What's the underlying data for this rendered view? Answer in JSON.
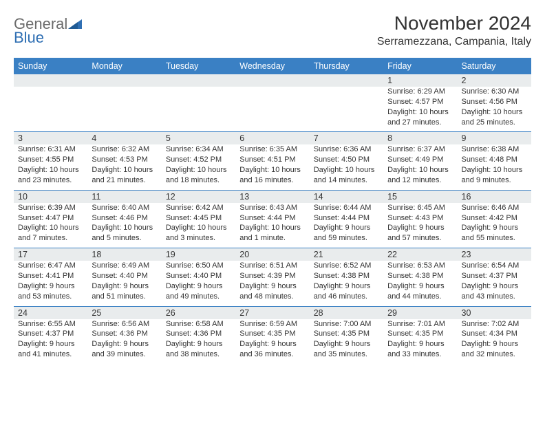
{
  "logo": {
    "part1": "General",
    "part2": "Blue"
  },
  "title": "November 2024",
  "location": "Serramezzana, Campania, Italy",
  "colors": {
    "header_bg": "#3a80c4",
    "header_text": "#ffffff",
    "daynum_bg": "#e9eced",
    "text": "#333333",
    "rule": "#3a80c4",
    "logo_gray": "#6b6b6b",
    "logo_blue": "#2f6fb3"
  },
  "day_names": [
    "Sunday",
    "Monday",
    "Tuesday",
    "Wednesday",
    "Thursday",
    "Friday",
    "Saturday"
  ],
  "weeks": [
    [
      null,
      null,
      null,
      null,
      null,
      {
        "n": "1",
        "sr": "6:29 AM",
        "ss": "4:57 PM",
        "dl": "10 hours and 27 minutes."
      },
      {
        "n": "2",
        "sr": "6:30 AM",
        "ss": "4:56 PM",
        "dl": "10 hours and 25 minutes."
      }
    ],
    [
      {
        "n": "3",
        "sr": "6:31 AM",
        "ss": "4:55 PM",
        "dl": "10 hours and 23 minutes."
      },
      {
        "n": "4",
        "sr": "6:32 AM",
        "ss": "4:53 PM",
        "dl": "10 hours and 21 minutes."
      },
      {
        "n": "5",
        "sr": "6:34 AM",
        "ss": "4:52 PM",
        "dl": "10 hours and 18 minutes."
      },
      {
        "n": "6",
        "sr": "6:35 AM",
        "ss": "4:51 PM",
        "dl": "10 hours and 16 minutes."
      },
      {
        "n": "7",
        "sr": "6:36 AM",
        "ss": "4:50 PM",
        "dl": "10 hours and 14 minutes."
      },
      {
        "n": "8",
        "sr": "6:37 AM",
        "ss": "4:49 PM",
        "dl": "10 hours and 12 minutes."
      },
      {
        "n": "9",
        "sr": "6:38 AM",
        "ss": "4:48 PM",
        "dl": "10 hours and 9 minutes."
      }
    ],
    [
      {
        "n": "10",
        "sr": "6:39 AM",
        "ss": "4:47 PM",
        "dl": "10 hours and 7 minutes."
      },
      {
        "n": "11",
        "sr": "6:40 AM",
        "ss": "4:46 PM",
        "dl": "10 hours and 5 minutes."
      },
      {
        "n": "12",
        "sr": "6:42 AM",
        "ss": "4:45 PM",
        "dl": "10 hours and 3 minutes."
      },
      {
        "n": "13",
        "sr": "6:43 AM",
        "ss": "4:44 PM",
        "dl": "10 hours and 1 minute."
      },
      {
        "n": "14",
        "sr": "6:44 AM",
        "ss": "4:44 PM",
        "dl": "9 hours and 59 minutes."
      },
      {
        "n": "15",
        "sr": "6:45 AM",
        "ss": "4:43 PM",
        "dl": "9 hours and 57 minutes."
      },
      {
        "n": "16",
        "sr": "6:46 AM",
        "ss": "4:42 PM",
        "dl": "9 hours and 55 minutes."
      }
    ],
    [
      {
        "n": "17",
        "sr": "6:47 AM",
        "ss": "4:41 PM",
        "dl": "9 hours and 53 minutes."
      },
      {
        "n": "18",
        "sr": "6:49 AM",
        "ss": "4:40 PM",
        "dl": "9 hours and 51 minutes."
      },
      {
        "n": "19",
        "sr": "6:50 AM",
        "ss": "4:40 PM",
        "dl": "9 hours and 49 minutes."
      },
      {
        "n": "20",
        "sr": "6:51 AM",
        "ss": "4:39 PM",
        "dl": "9 hours and 48 minutes."
      },
      {
        "n": "21",
        "sr": "6:52 AM",
        "ss": "4:38 PM",
        "dl": "9 hours and 46 minutes."
      },
      {
        "n": "22",
        "sr": "6:53 AM",
        "ss": "4:38 PM",
        "dl": "9 hours and 44 minutes."
      },
      {
        "n": "23",
        "sr": "6:54 AM",
        "ss": "4:37 PM",
        "dl": "9 hours and 43 minutes."
      }
    ],
    [
      {
        "n": "24",
        "sr": "6:55 AM",
        "ss": "4:37 PM",
        "dl": "9 hours and 41 minutes."
      },
      {
        "n": "25",
        "sr": "6:56 AM",
        "ss": "4:36 PM",
        "dl": "9 hours and 39 minutes."
      },
      {
        "n": "26",
        "sr": "6:58 AM",
        "ss": "4:36 PM",
        "dl": "9 hours and 38 minutes."
      },
      {
        "n": "27",
        "sr": "6:59 AM",
        "ss": "4:35 PM",
        "dl": "9 hours and 36 minutes."
      },
      {
        "n": "28",
        "sr": "7:00 AM",
        "ss": "4:35 PM",
        "dl": "9 hours and 35 minutes."
      },
      {
        "n": "29",
        "sr": "7:01 AM",
        "ss": "4:35 PM",
        "dl": "9 hours and 33 minutes."
      },
      {
        "n": "30",
        "sr": "7:02 AM",
        "ss": "4:34 PM",
        "dl": "9 hours and 32 minutes."
      }
    ]
  ]
}
